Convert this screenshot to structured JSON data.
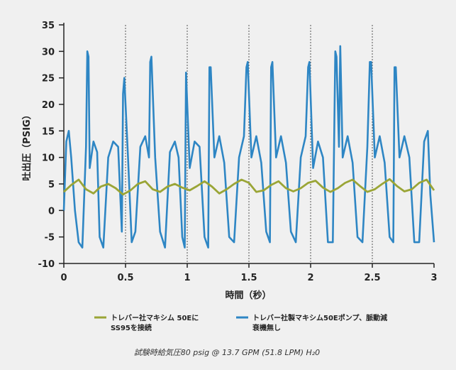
{
  "chart_data": {
    "type": "line",
    "xlabel": "時間（秒）",
    "ylabel": "吐出圧（PSIG）",
    "xlim": [
      0,
      3
    ],
    "ylim": [
      -10,
      35
    ],
    "x_ticks": [
      0,
      0.5,
      1,
      1.5,
      2,
      2.5,
      3
    ],
    "x_tick_labels": [
      "0",
      "0.5",
      "1",
      "1.5",
      "2",
      "2.5",
      "3"
    ],
    "y_ticks": [
      -10,
      -5,
      0,
      5,
      10,
      15,
      20,
      25,
      30,
      35
    ],
    "y_tick_labels": [
      "-10",
      "-5",
      "0",
      "5",
      "10",
      "15",
      "20",
      "25",
      "30",
      "35"
    ],
    "vertical_gridlines_at": [
      0.5,
      1,
      1.5,
      2,
      2.5
    ],
    "grid": "vertical dotted",
    "legend_position": "bottom",
    "series": [
      {
        "name": "トレバー社マキシム 50Eに SS95を接続",
        "legend_lines": [
          "トレバー社マキシム 50Eに",
          "SS95を接続"
        ],
        "color": "#9aa536",
        "x": [
          0,
          0.06,
          0.12,
          0.18,
          0.24,
          0.3,
          0.36,
          0.42,
          0.48,
          0.54,
          0.6,
          0.66,
          0.72,
          0.78,
          0.84,
          0.9,
          0.96,
          1.02,
          1.08,
          1.14,
          1.2,
          1.26,
          1.32,
          1.38,
          1.44,
          1.5,
          1.56,
          1.62,
          1.68,
          1.74,
          1.8,
          1.86,
          1.92,
          1.98,
          2.04,
          2.1,
          2.16,
          2.22,
          2.28,
          2.34,
          2.4,
          2.46,
          2.52,
          2.58,
          2.64,
          2.7,
          2.76,
          2.82,
          2.88,
          2.94,
          3.0
        ],
        "y": [
          3.5,
          4.8,
          5.8,
          4.0,
          3.2,
          4.5,
          5.0,
          4.2,
          3.0,
          3.8,
          5.0,
          5.5,
          4.0,
          3.5,
          4.5,
          5.0,
          4.3,
          3.8,
          4.6,
          5.5,
          4.5,
          3.2,
          4.0,
          5.0,
          5.8,
          5.2,
          3.5,
          3.8,
          4.8,
          5.5,
          4.2,
          3.6,
          4.2,
          5.2,
          5.6,
          4.3,
          3.5,
          4.2,
          5.2,
          5.8,
          4.6,
          3.5,
          4.0,
          5.0,
          5.9,
          4.6,
          3.6,
          4.0,
          5.2,
          5.8,
          3.8
        ]
      },
      {
        "name": "トレバー社製マキシム50Eポンプ、脈動減衰機無し",
        "legend_lines": [
          "トレバー社製マキシム50Eポンプ、脈動減",
          "衰機無し"
        ],
        "color": "#2e86c4",
        "x": [
          0,
          0.02,
          0.04,
          0.06,
          0.09,
          0.12,
          0.15,
          0.18,
          0.19,
          0.2,
          0.21,
          0.24,
          0.27,
          0.29,
          0.32,
          0.36,
          0.4,
          0.44,
          0.47,
          0.48,
          0.49,
          0.52,
          0.55,
          0.58,
          0.62,
          0.66,
          0.69,
          0.7,
          0.71,
          0.74,
          0.78,
          0.82,
          0.86,
          0.9,
          0.93,
          0.96,
          0.98,
          0.99,
          1.02,
          1.06,
          1.1,
          1.14,
          1.17,
          1.18,
          1.19,
          1.22,
          1.26,
          1.3,
          1.34,
          1.38,
          1.42,
          1.46,
          1.48,
          1.49,
          1.52,
          1.56,
          1.6,
          1.64,
          1.67,
          1.68,
          1.69,
          1.72,
          1.76,
          1.8,
          1.84,
          1.88,
          1.92,
          1.96,
          1.98,
          1.99,
          2.02,
          2.06,
          2.1,
          2.14,
          2.18,
          2.2,
          2.21,
          2.23,
          2.24,
          2.26,
          2.3,
          2.34,
          2.38,
          2.42,
          2.46,
          2.48,
          2.49,
          2.52,
          2.56,
          2.6,
          2.64,
          2.67,
          2.68,
          2.69,
          2.72,
          2.76,
          2.8,
          2.84,
          2.88,
          2.92,
          2.95,
          2.97,
          3.0
        ],
        "y": [
          0,
          13,
          15,
          10,
          0,
          -6,
          -7,
          12,
          30,
          29,
          8,
          13,
          11,
          -5,
          -7,
          10,
          13,
          12,
          -4,
          22,
          25,
          10,
          -6,
          -4,
          12,
          14,
          10,
          28,
          29,
          10,
          -4,
          -7,
          11,
          13,
          10,
          -5,
          -7,
          26,
          8,
          13,
          12,
          -5,
          -7,
          27,
          27,
          10,
          14,
          9,
          -5,
          -6,
          10,
          14,
          27,
          28,
          10,
          14,
          9,
          -4,
          -6,
          27,
          28,
          10,
          14,
          9,
          -4,
          -6,
          10,
          14,
          27,
          28,
          8,
          13,
          10,
          -6,
          -6,
          30,
          29,
          12,
          31,
          10,
          14,
          9,
          -5,
          -6,
          12,
          28,
          28,
          10,
          14,
          9,
          -5,
          -6,
          27,
          27,
          10,
          14,
          10,
          -6,
          -6,
          13,
          15,
          3,
          -6
        ]
      }
    ],
    "footnote": "試験時給気圧80 psig @ 13.7 GPM (51.8 LPM) H₂0"
  }
}
